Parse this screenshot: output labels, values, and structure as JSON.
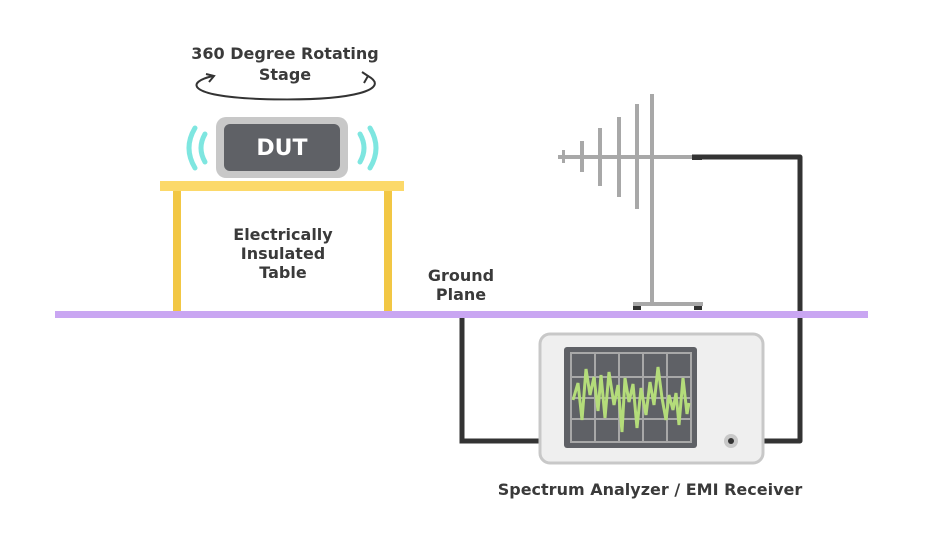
{
  "labels": {
    "stage_line1": "360 Degree Rotating",
    "stage_line2": "Stage",
    "dut": "DUT",
    "table_line1": "Electrically",
    "table_line2": "Insulated",
    "table_line3": "Table",
    "ground_line1": "Ground",
    "ground_line2": "Plane",
    "analyzer": "Spectrum Analyzer / EMI Receiver"
  },
  "colors": {
    "ground_plane": "#c9a6f2",
    "table_top": "#fcd96a",
    "table_legs": "#f2c744",
    "emission_waves": "#7ee6e0",
    "dut_body": "#5f6166",
    "dut_frame": "#c8c8c8",
    "cable": "#333333",
    "antenna": "#a8a8a8",
    "signal_trace": "#b4dc7a"
  }
}
